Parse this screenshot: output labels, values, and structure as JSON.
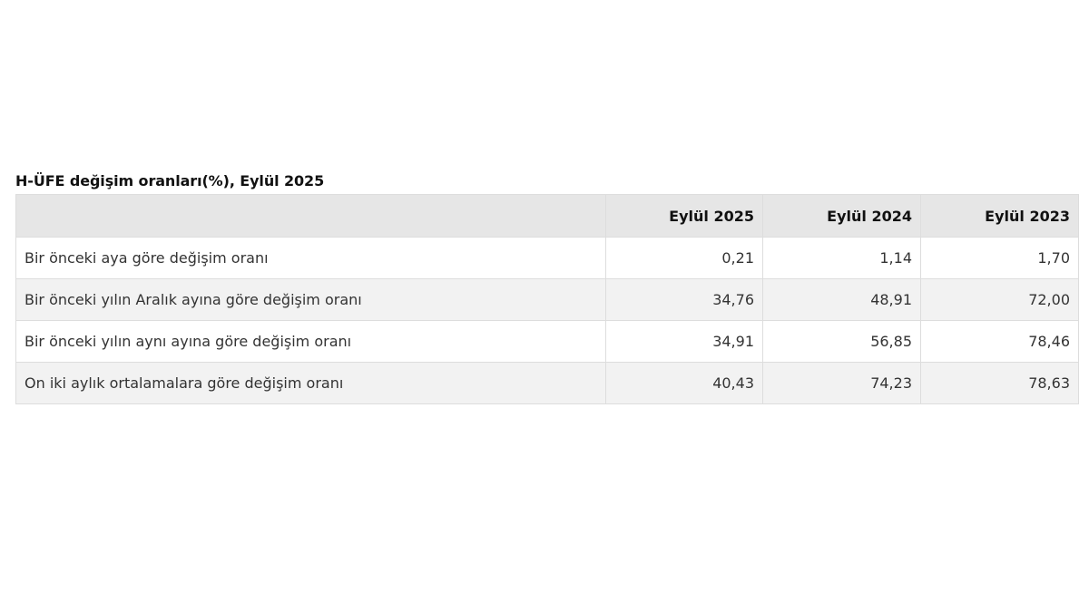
{
  "table": {
    "caption": "H-ÜFE değişim oranları(%), Eylül 2025",
    "headers": [
      "",
      "Eylül 2025",
      "Eylül 2024",
      "Eylül 2023"
    ],
    "rows": [
      {
        "label": "Bir önceki aya göre değişim oranı",
        "values": [
          "0,21",
          "1,14",
          "1,70"
        ]
      },
      {
        "label": "Bir önceki yılın Aralık ayına göre değişim oranı",
        "values": [
          "34,76",
          "48,91",
          "72,00"
        ]
      },
      {
        "label": "Bir önceki yılın aynı ayına göre değişim oranı",
        "values": [
          "34,91",
          "56,85",
          "78,46"
        ]
      },
      {
        "label": "On iki aylık ortalamalara göre değişim oranı",
        "values": [
          "40,43",
          "74,23",
          "78,63"
        ]
      }
    ]
  }
}
